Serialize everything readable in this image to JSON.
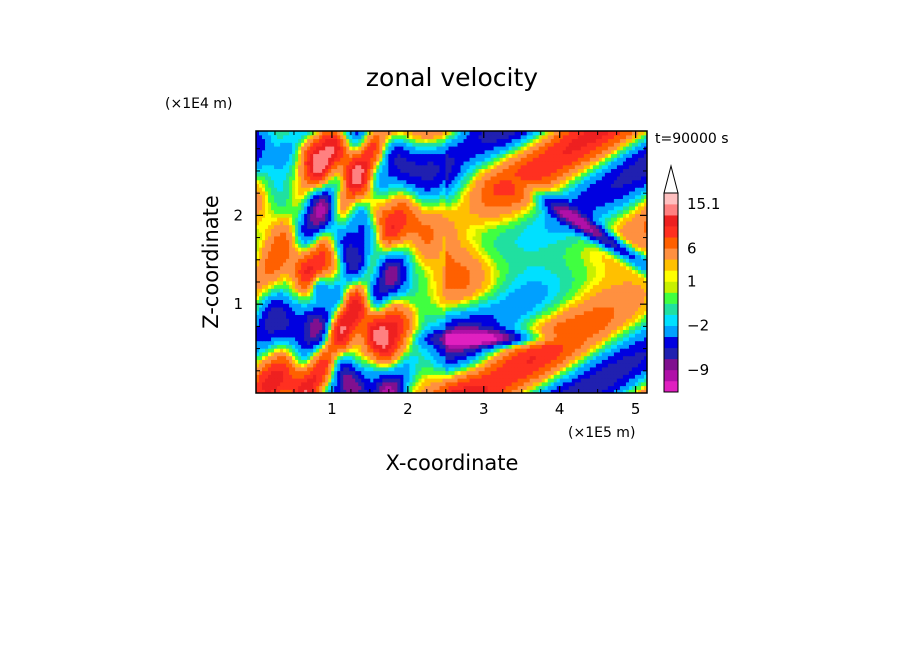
{
  "chart_data": {
    "type": "heatmap",
    "title": "zonal velocity",
    "xlabel": "X-coordinate",
    "ylabel": "Z-coordinate",
    "x_unit": "(×1E5 m)",
    "y_unit": "(×1E4 m)",
    "time_label": "t=90000 s",
    "xlim": [
      0,
      5.15
    ],
    "ylim": [
      0,
      2.95
    ],
    "x_ticks": [
      "1",
      "2",
      "3",
      "4",
      "5"
    ],
    "x_tick_values": [
      1,
      2,
      3,
      4,
      5
    ],
    "y_ticks": [
      "1",
      "2"
    ],
    "y_tick_values": [
      1,
      2
    ],
    "colorbar": {
      "labels": [
        "15.1",
        "6",
        "1",
        "−2",
        "−9"
      ],
      "label_values": [
        15.1,
        6,
        1,
        -2,
        -9
      ],
      "levels": [
        -13,
        -11,
        -9,
        -7,
        -5,
        -3,
        -2,
        -1,
        0,
        0.5,
        1,
        2,
        4,
        6,
        8,
        10,
        12,
        15.1
      ],
      "colors": [
        "#e020c0",
        "#b010a8",
        "#80108f",
        "#2020b0",
        "#0000e0",
        "#00a0ff",
        "#00e0ff",
        "#20e0a0",
        "#40ff40",
        "#c8f000",
        "#ffff00",
        "#ffc000",
        "#ff9040",
        "#ff6000",
        "#ff3020",
        "#ee2020",
        "#ff8080",
        "#ffc0c0"
      ],
      "extend": "max"
    }
  }
}
